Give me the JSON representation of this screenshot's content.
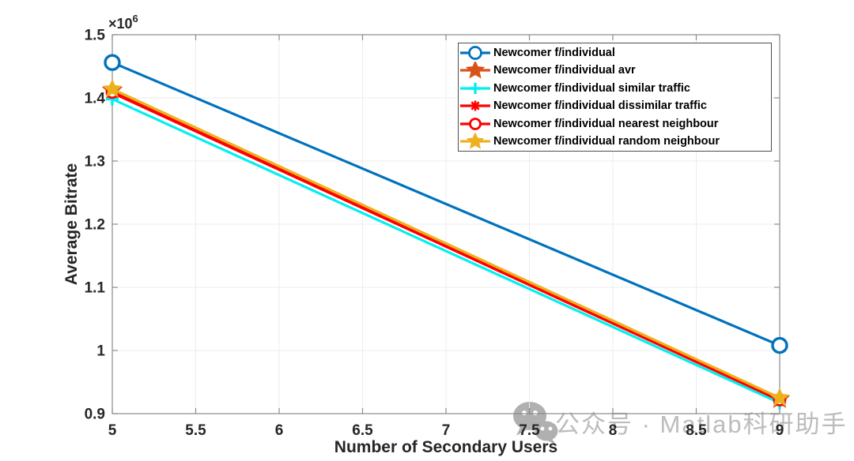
{
  "figure": {
    "background": "#ffffff",
    "axes_color": "#8a8a8a",
    "tick_label_color": "#262626",
    "grid_color": "#ececec"
  },
  "chart_data": {
    "type": "line",
    "title": "",
    "xlabel": "Number of Secondary Users",
    "ylabel": "Average Bitrate",
    "y_exponent": {
      "base": "×10",
      "exp": "6"
    },
    "xlim": [
      5,
      9
    ],
    "ylim": [
      900000,
      1500000
    ],
    "xticks": [
      5,
      5.5,
      6,
      6.5,
      7,
      7.5,
      8,
      8.5,
      9
    ],
    "xtick_labels": [
      "5",
      "5.5",
      "6",
      "6.5",
      "7",
      "7.5",
      "8",
      "8.5",
      "9"
    ],
    "yticks": [
      900000,
      1000000,
      1100000,
      1200000,
      1300000,
      1400000,
      1500000
    ],
    "ytick_labels": [
      "0.9",
      "1",
      "1.1",
      "1.2",
      "1.3",
      "1.4",
      "1.5"
    ],
    "grid": true,
    "legend_position": "top-right-inside",
    "x": [
      5,
      9
    ],
    "series": [
      {
        "name": "Newcomer f/individual",
        "values": [
          1456000,
          1008000
        ],
        "color": "#0072BD",
        "marker": "circle"
      },
      {
        "name": "Newcomer f/individual avr",
        "values": [
          1412000,
          923000
        ],
        "color": "#D95319",
        "marker": "star"
      },
      {
        "name": "Newcomer f/individual similar traffic",
        "values": [
          1398000,
          917000
        ],
        "color": "#00F0F0",
        "marker": "plus"
      },
      {
        "name": "Newcomer f/individual dissimilar traffic",
        "values": [
          1408000,
          921000
        ],
        "color": "#FF0000",
        "marker": "asterisk"
      },
      {
        "name": "Newcomer f/individual nearest neighbour",
        "values": [
          1409000,
          922000
        ],
        "color": "#FF0000",
        "marker": "circle"
      },
      {
        "name": "Newcomer f/individual random neighbour",
        "values": [
          1414000,
          925000
        ],
        "color": "#EDB120",
        "marker": "star"
      }
    ]
  },
  "watermark": {
    "icon": "wechat-icon",
    "text": "公众号 · Matlab科研助手",
    "color": "#bcbcbc"
  }
}
